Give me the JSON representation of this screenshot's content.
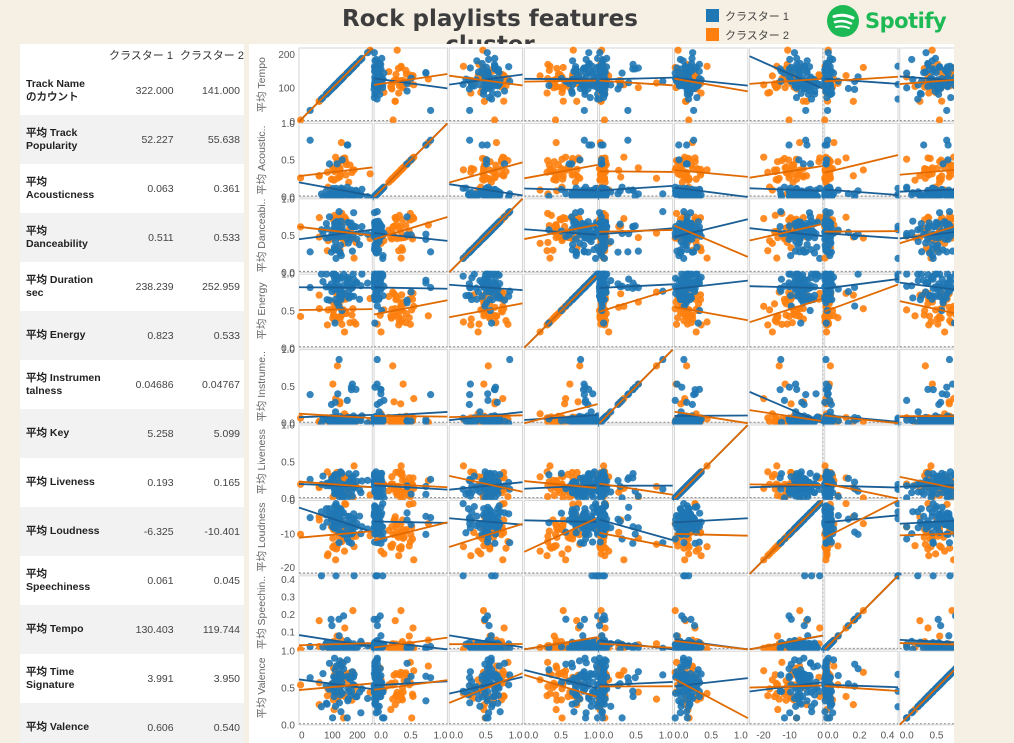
{
  "title": "Rock playlists features cluster",
  "legend": [
    {
      "label": "クラスター 1",
      "color": "#1f77b4"
    },
    {
      "label": "クラスター 2",
      "color": "#ff7f0e"
    }
  ],
  "logo": {
    "text": "Spotify",
    "icon": "spotify-logo-icon",
    "color": "#1db954"
  },
  "table": {
    "headers": [
      "",
      "クラスター 1",
      "クラスター 2"
    ],
    "rows": [
      {
        "label": "Track Name\nのカウント",
        "c1": "322.000",
        "c2": "141.000"
      },
      {
        "label": "平均 Track\nPopularity",
        "c1": "52.227",
        "c2": "55.638"
      },
      {
        "label": "平均\nAcousticness",
        "c1": "0.063",
        "c2": "0.361"
      },
      {
        "label": "平均\nDanceability",
        "c1": "0.511",
        "c2": "0.533"
      },
      {
        "label": "平均 Duration\nsec",
        "c1": "238.239",
        "c2": "252.959"
      },
      {
        "label": "平均 Energy",
        "c1": "0.823",
        "c2": "0.533"
      },
      {
        "label": "平均 Instrumen\ntalness",
        "c1": "0.04686",
        "c2": "0.04767"
      },
      {
        "label": "平均 Key",
        "c1": "5.258",
        "c2": "5.099"
      },
      {
        "label": "平均 Liveness",
        "c1": "0.193",
        "c2": "0.165"
      },
      {
        "label": "平均 Loudness",
        "c1": "-6.325",
        "c2": "-10.401"
      },
      {
        "label": "平均\nSpeechiness",
        "c1": "0.061",
        "c2": "0.045"
      },
      {
        "label": "平均 Tempo",
        "c1": "130.403",
        "c2": "119.744"
      },
      {
        "label": "平均 Time\nSignature",
        "c1": "3.991",
        "c2": "3.950"
      },
      {
        "label": "平均 Valence",
        "c1": "0.606",
        "c2": "0.540"
      }
    ]
  },
  "chart_data": {
    "type": "scatter",
    "layout": "scatter-matrix",
    "variables": [
      {
        "name": "Tempo",
        "row_label": "平均 Tempo",
        "range": [
          0,
          220
        ],
        "ticks": [
          0,
          100,
          200
        ],
        "tick_labels": [
          "0",
          "100",
          "200"
        ]
      },
      {
        "name": "Acousticness",
        "row_label": "平均 Acoustic..",
        "range": [
          0,
          1
        ],
        "ticks": [
          0,
          0.5,
          1
        ],
        "tick_labels": [
          "0.0",
          "0.5",
          "1.0"
        ]
      },
      {
        "name": "Danceability",
        "row_label": "平均 Danceabi..",
        "range": [
          0,
          1
        ],
        "ticks": [
          0,
          0.5,
          1
        ],
        "tick_labels": [
          "0.0",
          "0.5",
          "1.0"
        ]
      },
      {
        "name": "Energy",
        "row_label": "平均 Energy",
        "range": [
          0,
          1
        ],
        "ticks": [
          0,
          0.5,
          1
        ],
        "tick_labels": [
          "0.0",
          "0.5",
          "1.0"
        ]
      },
      {
        "name": "Instrumentalness",
        "row_label": "平均 Instrume..",
        "range": [
          0,
          1
        ],
        "ticks": [
          0,
          0.5,
          1
        ],
        "tick_labels": [
          "0.0",
          "0.5",
          "1.0"
        ]
      },
      {
        "name": "Liveness",
        "row_label": "平均 Liveness",
        "range": [
          0,
          1
        ],
        "ticks": [
          0,
          0.5,
          1
        ],
        "tick_labels": [
          "0.0",
          "0.5",
          "1.0"
        ]
      },
      {
        "name": "Loudness",
        "row_label": "平均 Loudness",
        "range": [
          -22,
          0
        ],
        "ticks": [
          -20,
          -10,
          0
        ],
        "tick_labels": [
          "-20",
          "-10",
          "0"
        ]
      },
      {
        "name": "Speechiness",
        "row_label": "平均 Speechin..",
        "range": [
          0,
          0.42
        ],
        "ticks": [
          0.1,
          0.2,
          0.3,
          0.4
        ],
        "tick_labels": [
          "0.1",
          "0.2",
          "0.3",
          "0.4"
        ],
        "x_ticks": [
          0,
          0.2,
          0.4
        ],
        "x_tick_labels": [
          "0.0",
          "0.2",
          "0.4"
        ]
      },
      {
        "name": "Valence",
        "row_label": "平均 Valence",
        "range": [
          0,
          1
        ],
        "ticks": [
          0,
          0.5,
          1
        ],
        "tick_labels": [
          "0.0",
          "0.5",
          "1.0"
        ]
      }
    ],
    "series": [
      {
        "name": "クラスター 1",
        "color": "#1f77b4",
        "n": 322,
        "means": [
          130.403,
          0.063,
          0.511,
          0.823,
          0.04686,
          0.193,
          -6.325,
          0.061,
          0.606
        ]
      },
      {
        "name": "クラスター 2",
        "color": "#ff7f0e",
        "n": 141,
        "means": [
          119.744,
          0.361,
          0.533,
          0.533,
          0.04767,
          0.165,
          -10.401,
          0.045,
          0.54
        ]
      }
    ]
  }
}
